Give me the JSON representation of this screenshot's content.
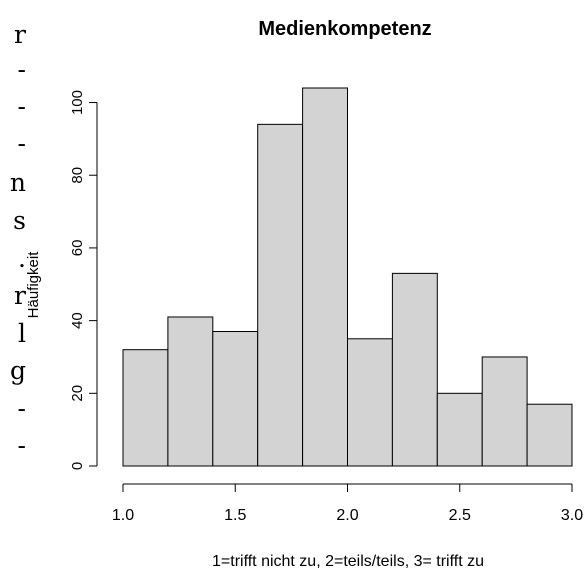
{
  "edge_fragments": [
    "r",
    "-",
    "-",
    "-",
    "n",
    "s",
    ".",
    "r",
    "l",
    "g",
    "-",
    "-"
  ],
  "chart_data": {
    "type": "bar",
    "title": "Medienkompetenz",
    "xlabel": "1=trifft nicht zu, 2=teils/teils, 3= trifft zu",
    "ylabel": "Häufigkeit",
    "bin_edges": [
      1.0,
      1.2,
      1.4,
      1.6,
      1.8,
      2.0,
      2.2,
      2.4,
      2.6,
      2.8,
      3.0
    ],
    "values": [
      32,
      41,
      37,
      94,
      104,
      35,
      53,
      20,
      30,
      17
    ],
    "xlim": [
      1.0,
      3.0
    ],
    "ylim": [
      0,
      104
    ],
    "x_ticks": [
      1.0,
      1.5,
      2.0,
      2.5,
      3.0
    ],
    "x_tick_labels": [
      "1.0",
      "1.5",
      "2.0",
      "2.5",
      "3.0"
    ],
    "y_ticks": [
      0,
      20,
      40,
      60,
      80,
      100
    ],
    "y_tick_labels": [
      "0",
      "20",
      "40",
      "60",
      "80",
      "100"
    ],
    "bar_color": "#d3d3d3",
    "grid": false
  }
}
